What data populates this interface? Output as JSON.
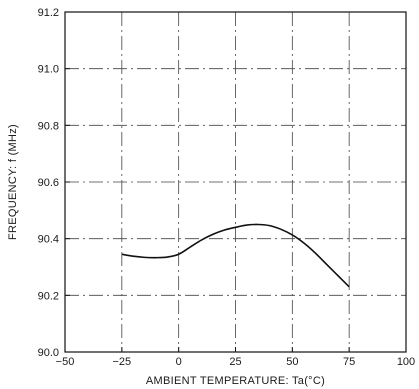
{
  "chart_data": {
    "type": "line",
    "title": "",
    "xlabel": "AMBIENT TEMPERATURE: Ta(°C)",
    "ylabel": "FREQUENCY: f (MHz)",
    "xlim": [
      -50,
      100
    ],
    "ylim": [
      90.0,
      91.2
    ],
    "xticks": [
      -50,
      -25,
      0,
      25,
      50,
      75,
      100
    ],
    "xtick_labels": [
      "−50",
      "−25",
      "0",
      "25",
      "50",
      "75",
      "100"
    ],
    "yticks": [
      90.0,
      90.2,
      90.4,
      90.6,
      90.8,
      91.0,
      91.2
    ],
    "ytick_labels": [
      "90.0",
      "90.2",
      "90.4",
      "90.6",
      "90.8",
      "91.0",
      "91.2"
    ],
    "grid": true,
    "series": [
      {
        "x": [
          -25,
          -20,
          -15,
          -10,
          -5,
          0,
          5,
          10,
          15,
          20,
          25,
          30,
          35,
          40,
          45,
          50,
          55,
          60,
          65,
          70,
          75
        ],
        "y": [
          90.345,
          90.338,
          90.334,
          90.333,
          90.335,
          90.345,
          90.37,
          90.395,
          90.415,
          90.43,
          90.44,
          90.448,
          90.45,
          90.446,
          90.433,
          90.413,
          90.385,
          90.35,
          90.31,
          90.27,
          90.23
        ]
      }
    ]
  }
}
